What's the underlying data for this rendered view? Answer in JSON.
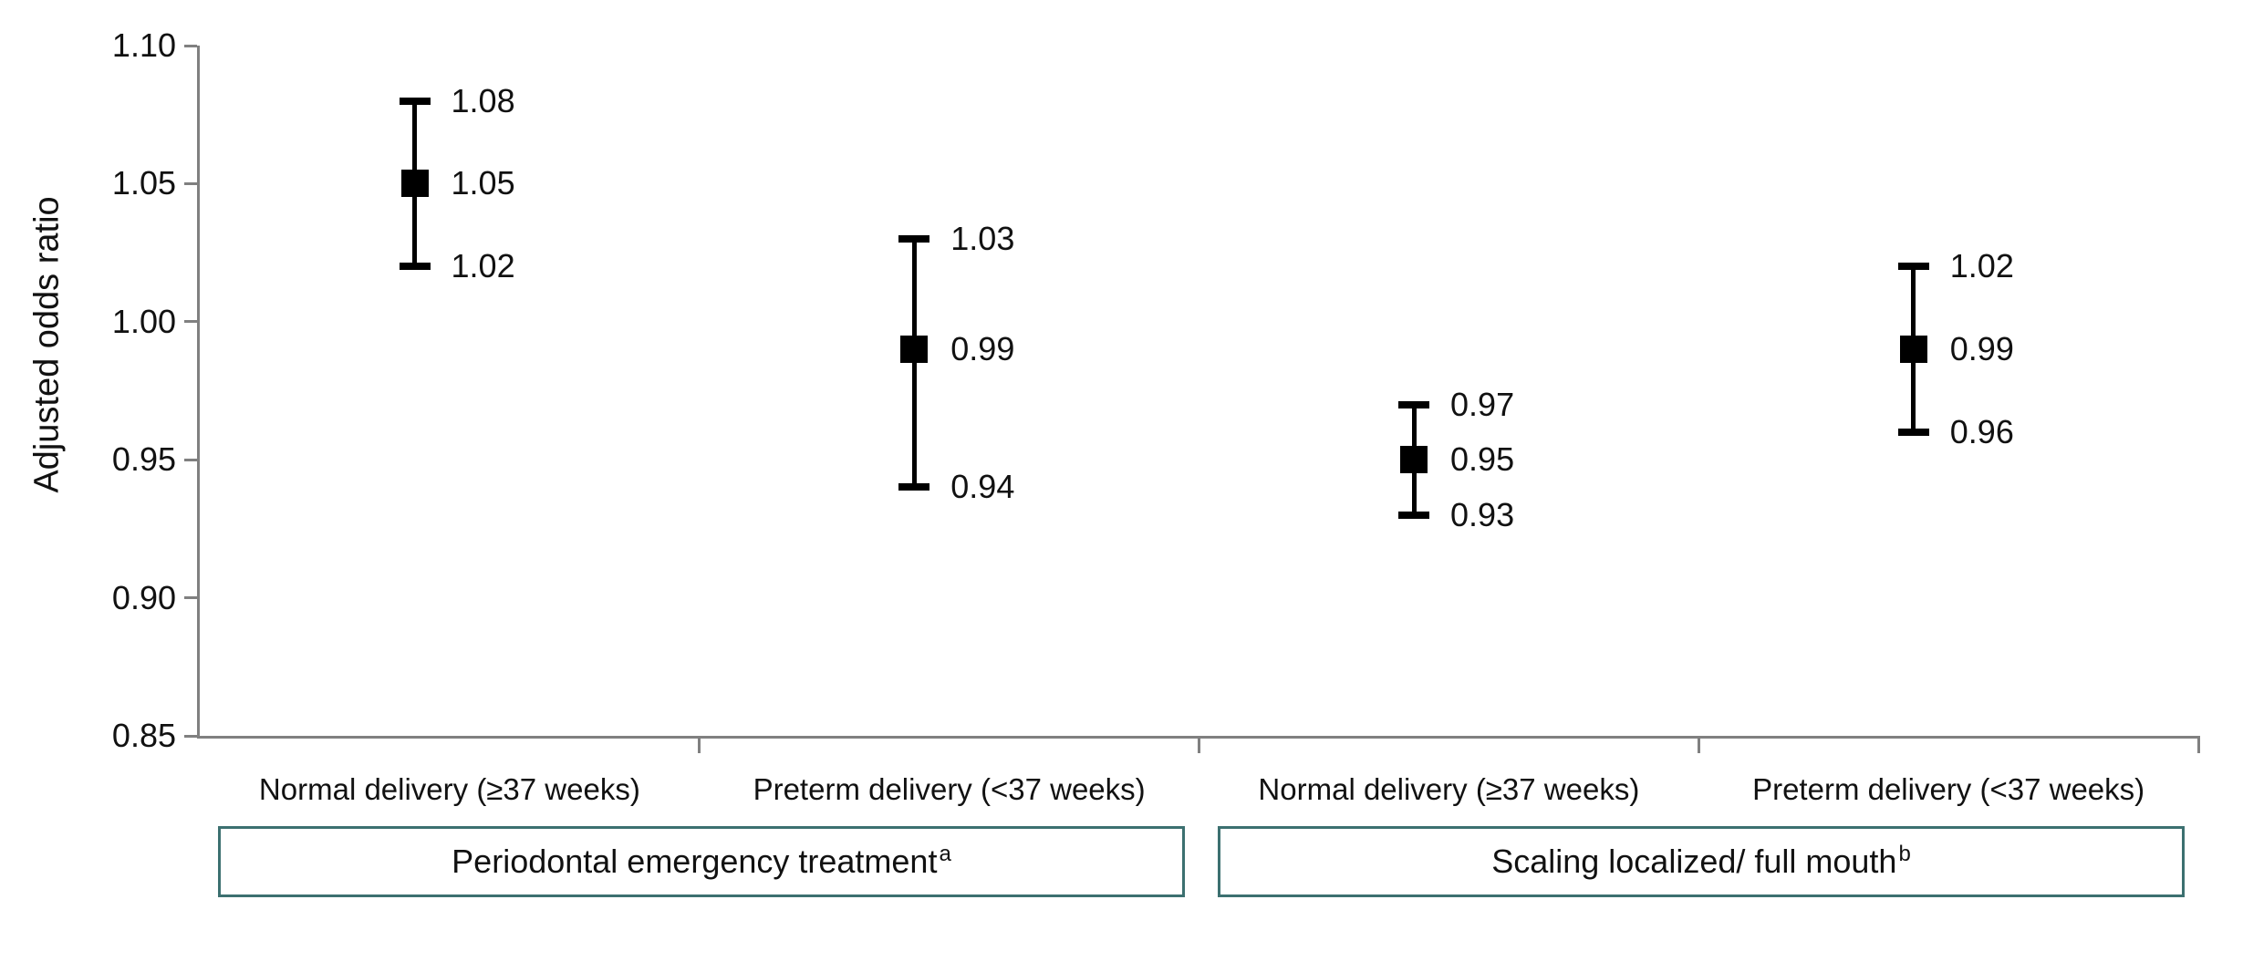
{
  "chart_data": {
    "type": "scatter",
    "subtype": "forest-plot-with-error-bars",
    "title": "",
    "xlabel": "",
    "ylabel": "Adjusted odds ratio",
    "ylim": [
      0.85,
      1.1
    ],
    "yticks": [
      1.1,
      1.05,
      1.0,
      0.95,
      0.9,
      0.85
    ],
    "grid": false,
    "legend": false,
    "categories": [
      "Normal delivery (≥37 weeks)",
      "Preterm delivery (<37 weeks)",
      "Normal delivery (≥37 weeks)",
      "Preterm delivery (<37 weeks)"
    ],
    "groups": [
      {
        "label": "Periodontal emergency treatment",
        "superscript": "a",
        "span_categories": [
          0,
          1
        ]
      },
      {
        "label": "Scaling localized/ full mouth",
        "superscript": "b",
        "span_categories": [
          2,
          3
        ]
      }
    ],
    "points": [
      {
        "category_index": 0,
        "or": 1.05,
        "ci_low": 1.02,
        "ci_high": 1.08
      },
      {
        "category_index": 1,
        "or": 0.99,
        "ci_low": 0.94,
        "ci_high": 1.03
      },
      {
        "category_index": 2,
        "or": 0.95,
        "ci_low": 0.93,
        "ci_high": 0.97
      },
      {
        "category_index": 3,
        "or": 0.99,
        "ci_low": 0.96,
        "ci_high": 1.02
      }
    ],
    "value_label_format": "2dp",
    "colors": {
      "marker": "#000000",
      "error_bar": "#000000",
      "axis": "#808080",
      "group_box_border": "#3c7070",
      "text": "#111111",
      "background": "#ffffff"
    }
  }
}
